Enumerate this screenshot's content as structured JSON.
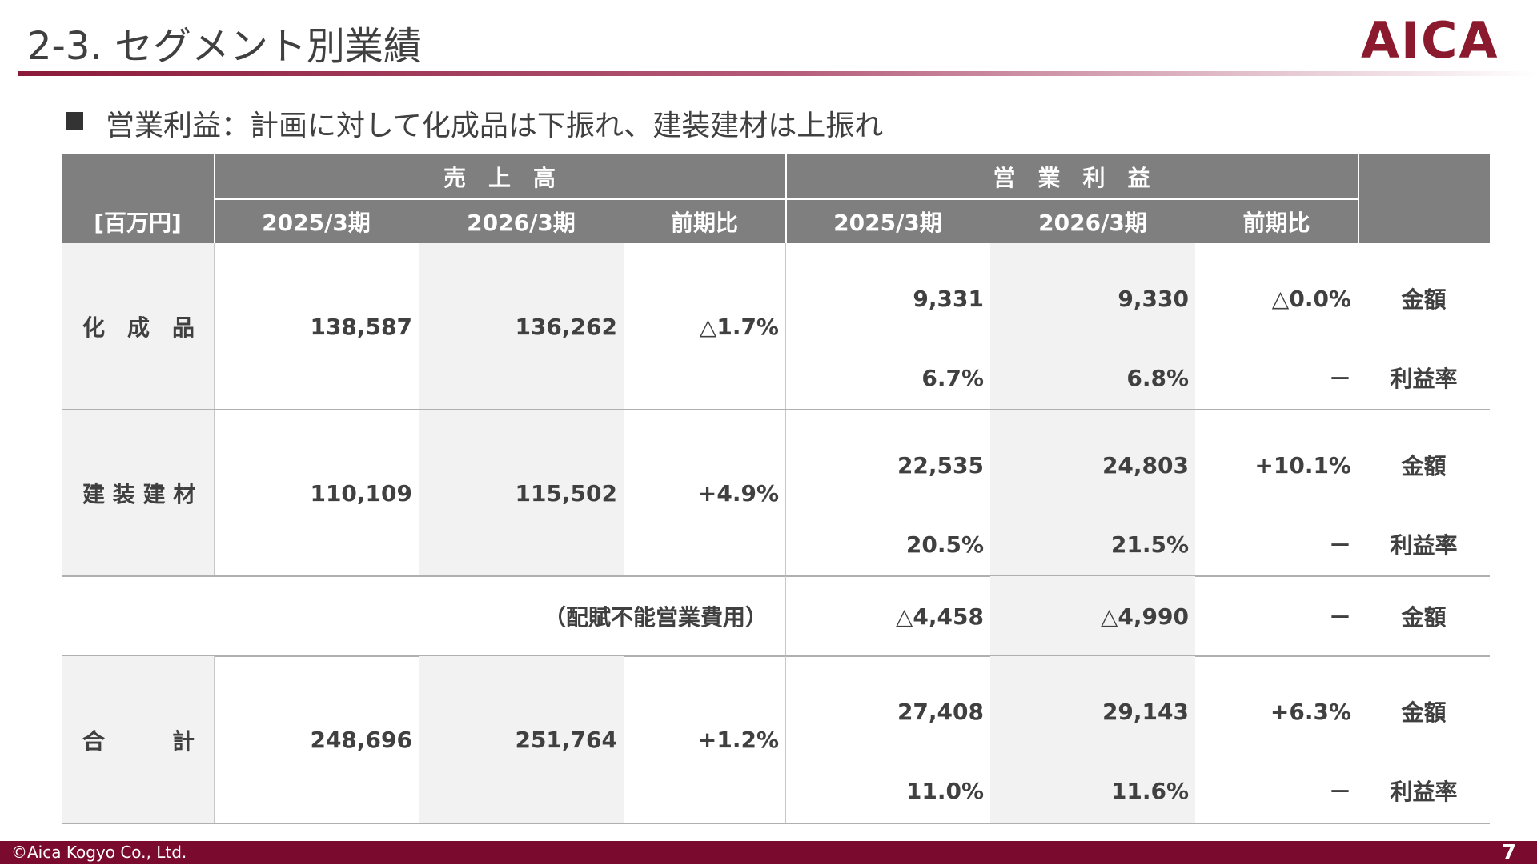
{
  "header": {
    "title": "2-3. セグメント別業績",
    "logo": "AICA"
  },
  "subtitle": "営業利益：計画に対して化成品は下振れ、建装建材は上振れ",
  "table": {
    "unit": "[百万円]",
    "groups": [
      "売　上　高",
      "営　業　利　益"
    ],
    "columns": [
      "2025/3期",
      "2026/3期",
      "前期比",
      "2025/3期",
      "2026/3期",
      "前期比"
    ],
    "rows": [
      {
        "label": "化　成　品",
        "sales": [
          "138,587",
          "136,262",
          "△1.7%"
        ],
        "profit": [
          "9,331",
          "9,330",
          "△0.0%"
        ],
        "profit_kind": "金額",
        "margin": [
          "6.7%",
          "6.8%",
          "－"
        ],
        "margin_kind": "利益率"
      },
      {
        "label": "建 装 建 材",
        "sales": [
          "110,109",
          "115,502",
          "+4.9%"
        ],
        "profit": [
          "22,535",
          "24,803",
          "+10.1%"
        ],
        "profit_kind": "金額",
        "margin": [
          "20.5%",
          "21.5%",
          "－"
        ],
        "margin_kind": "利益率"
      },
      {
        "label": "（配賦不能営業費用）",
        "profit": [
          "△4,458",
          "△4,990",
          "－"
        ],
        "profit_kind": "金額"
      },
      {
        "label": "合　　　計",
        "sales": [
          "248,696",
          "251,764",
          "+1.2%"
        ],
        "profit": [
          "27,408",
          "29,143",
          "+6.3%"
        ],
        "profit_kind": "金額",
        "margin": [
          "11.0%",
          "11.6%",
          "－"
        ],
        "margin_kind": "利益率"
      }
    ]
  },
  "footer": {
    "copyright": "©Aica Kogyo Co., Ltd.",
    "page": "7"
  }
}
